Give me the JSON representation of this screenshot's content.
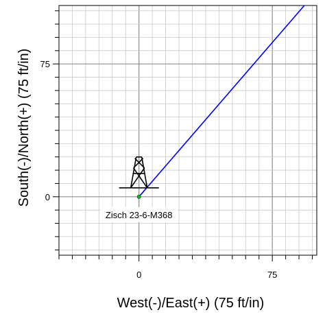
{
  "chart_data": {
    "type": "line",
    "xlabel": "West(-)/East(+) (75 ft/in)",
    "ylabel": "South(-)/North(+) (75 ft/in)",
    "xlim": [
      -45,
      100
    ],
    "ylim": [
      -33,
      108
    ],
    "x_ticks": [
      0,
      75
    ],
    "y_ticks": [
      0,
      75
    ],
    "minor_step": 7.5,
    "grid": true,
    "series": [
      {
        "color": "#0000ff",
        "points": [
          [
            0,
            0
          ],
          [
            93,
            108
          ]
        ]
      }
    ],
    "well": {
      "label": "Zisch 23-6-M368",
      "x": 0,
      "y": 0
    },
    "colors": {
      "path": "#0000ff",
      "grid": "#c8c8c8",
      "derrick": "#000000",
      "marker": "#00c000"
    }
  }
}
